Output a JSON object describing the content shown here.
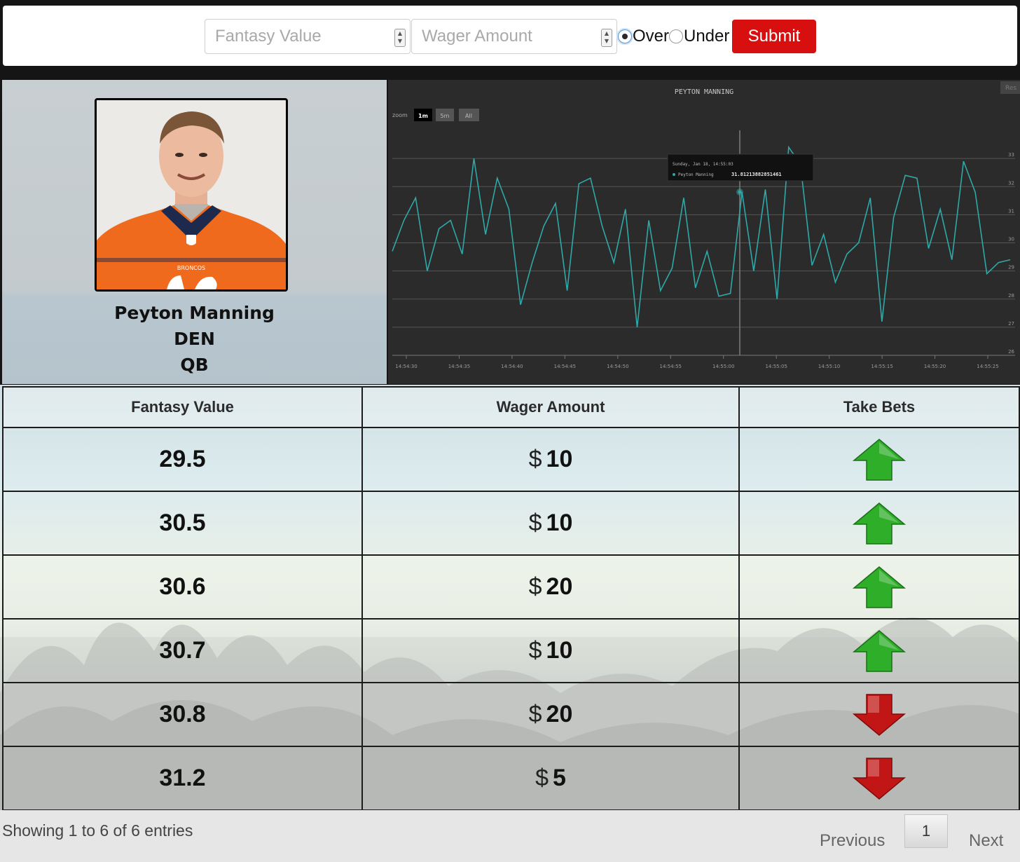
{
  "form": {
    "fantasy_value_placeholder": "Fantasy Value",
    "wager_amount_placeholder": "Wager Amount",
    "over_label": "Over",
    "under_label": "Under",
    "selected": "Over",
    "submit_label": "Submit"
  },
  "player": {
    "name": "Peyton Manning",
    "team": "DEN",
    "position": "QB",
    "jersey_text": "BRONCOS"
  },
  "chart": {
    "title": "PEYTON MANNING",
    "zoom_label": "zoom",
    "zoom_buttons": [
      "1m",
      "5m",
      "All"
    ],
    "zoom_selected": "1m",
    "reset_label": "Res",
    "tooltip_time": "Sunday, Jan 18, 14:55:03",
    "tooltip_series": "Peyton Manning",
    "tooltip_value": "31.81213882851461"
  },
  "chart_data": {
    "type": "line",
    "title": "PEYTON MANNING",
    "series": [
      {
        "name": "Peyton Manning",
        "color": "#2fa8a8",
        "values": [
          29.7,
          30.8,
          31.6,
          29.0,
          30.5,
          30.8,
          29.6,
          33.0,
          30.3,
          32.3,
          31.2,
          27.8,
          29.3,
          30.6,
          31.4,
          28.3,
          32.1,
          32.3,
          30.6,
          29.3,
          31.2,
          27.0,
          30.8,
          28.3,
          29.1,
          31.6,
          28.4,
          29.7,
          28.1,
          28.2,
          31.8,
          29.0,
          31.9,
          28.0,
          33.4,
          32.8,
          29.2,
          30.3,
          28.6,
          29.6,
          30.0,
          31.6,
          27.2,
          30.9,
          32.4,
          32.3,
          29.8,
          31.2,
          29.4,
          32.9,
          31.8,
          28.9,
          29.3,
          29.4
        ]
      }
    ],
    "ylim": [
      26,
      34
    ],
    "y_ticks": [
      26,
      27,
      28,
      29,
      30,
      31,
      32,
      33
    ],
    "x_ticks": [
      "14:54:30",
      "14:54:35",
      "14:54:40",
      "14:54:45",
      "14:54:50",
      "14:54:55",
      "14:55:00",
      "14:55:05",
      "14:55:10",
      "14:55:15",
      "14:55:20",
      "14:55:25"
    ],
    "grid": true,
    "legend": "none"
  },
  "table": {
    "headers": [
      "Fantasy Value",
      "Wager Amount",
      "Take Bets"
    ],
    "currency": "$",
    "rows": [
      {
        "fantasy_value": "29.5",
        "wager": "10",
        "direction": "up"
      },
      {
        "fantasy_value": "30.5",
        "wager": "10",
        "direction": "up"
      },
      {
        "fantasy_value": "30.6",
        "wager": "20",
        "direction": "up"
      },
      {
        "fantasy_value": "30.7",
        "wager": "10",
        "direction": "up"
      },
      {
        "fantasy_value": "30.8",
        "wager": "20",
        "direction": "down"
      },
      {
        "fantasy_value": "31.2",
        "wager": "5",
        "direction": "down"
      }
    ],
    "arrow_colors": {
      "up": "#2fae2a",
      "down": "#c21616"
    }
  },
  "pagination": {
    "info": "Showing 1 to 6 of 6 entries",
    "previous": "Previous",
    "current": "1",
    "next": "Next"
  }
}
